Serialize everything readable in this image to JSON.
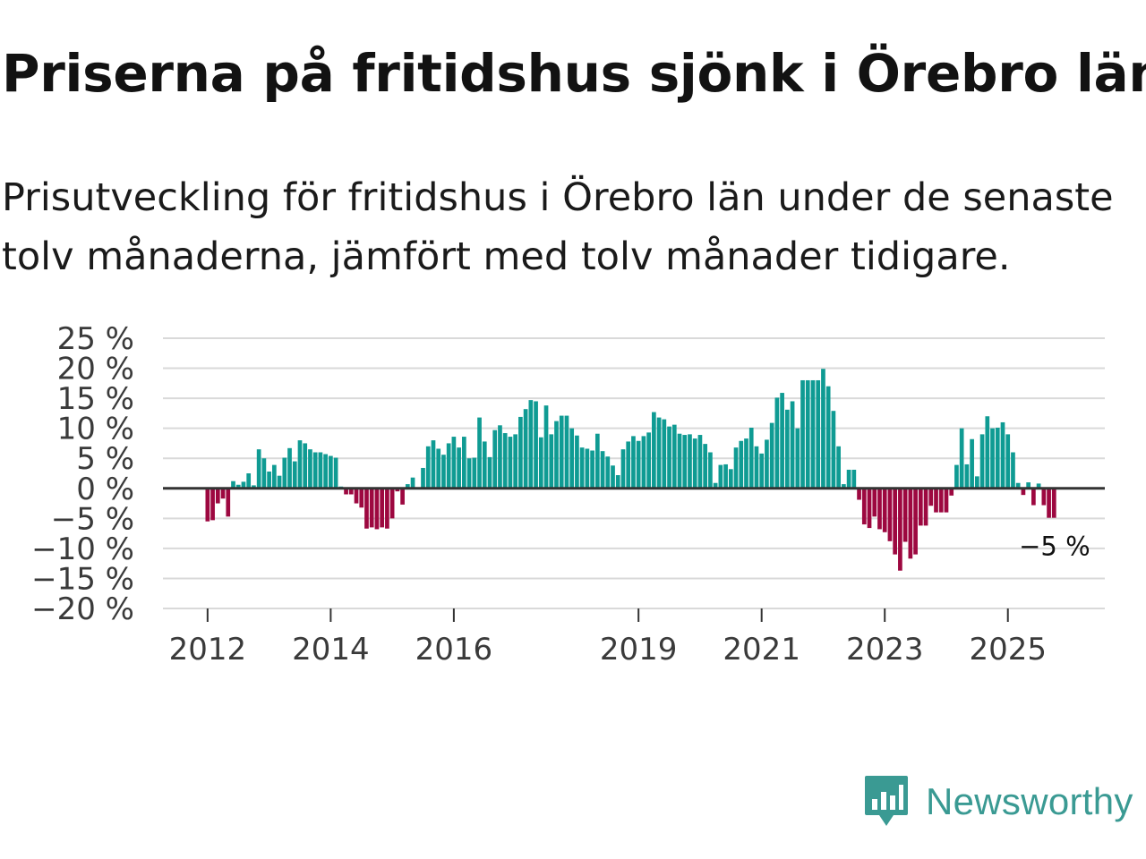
{
  "title": "Priserna på fritidshus sjönk i Örebro län",
  "subtitle": "Prisutveckling för fritidshus i Örebro län under de senaste tolv månaderna, jämfört med tolv månader tidigare.",
  "logo": {
    "text": "Newsworthy",
    "color": "#3a9a93"
  },
  "colors": {
    "positive": "#0f9b93",
    "negative": "#9d0840",
    "zero_line": "#333333",
    "grid": "#d9d9d9"
  },
  "chart_data": {
    "type": "bar",
    "title": "Prisutveckling för fritidshus i Örebro län",
    "xlabel": "",
    "ylabel": "",
    "ylim": [
      -20,
      25
    ],
    "yticks": [
      25,
      20,
      15,
      10,
      5,
      0,
      -5,
      -10,
      -15,
      -20
    ],
    "ytick_labels": [
      "25 %",
      "20 %",
      "15 %",
      "10 %",
      "5 %",
      "0 %",
      "−5 %",
      "−10 %",
      "−15 %",
      "−20 %"
    ],
    "xticks": [
      "2012",
      "2014",
      "2016",
      "2019",
      "2021",
      "2023",
      "2025"
    ],
    "start": "2012-01",
    "end_label": "−5 %",
    "values": [
      -5.5,
      -5.3,
      -2.5,
      -1.7,
      -4.7,
      1.2,
      0.6,
      1.1,
      2.5,
      0.5,
      6.5,
      5.0,
      2.8,
      3.9,
      2.1,
      5.1,
      6.7,
      4.5,
      8.0,
      7.5,
      6.5,
      6.0,
      6.0,
      5.7,
      5.4,
      5.1,
      0.3,
      -1.0,
      -1.0,
      -2.5,
      -3.2,
      -6.7,
      -6.5,
      -6.8,
      -6.5,
      -6.7,
      -5.0,
      -0.5,
      -2.7,
      0.7,
      1.8,
      0.1,
      3.4,
      7.0,
      8.0,
      6.6,
      5.6,
      7.5,
      8.6,
      6.8,
      8.6,
      5.0,
      5.1,
      11.8,
      7.8,
      5.2,
      9.7,
      10.5,
      9.2,
      8.6,
      9.0,
      11.9,
      13.2,
      14.7,
      14.5,
      8.5,
      13.8,
      9.0,
      11.2,
      12.1,
      12.1,
      10.0,
      8.8,
      6.8,
      6.6,
      6.3,
      9.1,
      6.2,
      5.3,
      3.8,
      2.2,
      6.5,
      7.8,
      8.7,
      7.9,
      8.7,
      9.3,
      12.7,
      11.8,
      11.5,
      10.3,
      10.6,
      9.1,
      8.9,
      9.0,
      8.3,
      8.9,
      7.4,
      6.0,
      0.9,
      3.9,
      4.0,
      3.2,
      6.8,
      7.9,
      8.3,
      10.1,
      7.0,
      5.8,
      8.1,
      10.9,
      15.1,
      15.9,
      13.1,
      14.5,
      10.0,
      18.0,
      18.0,
      18.0,
      18.0,
      19.9,
      17.0,
      12.9,
      7.0,
      0.7,
      3.1,
      3.1,
      -1.9,
      -6.0,
      -6.6,
      -4.7,
      -6.8,
      -7.3,
      -8.8,
      -11.0,
      -13.7,
      -8.9,
      -11.7,
      -11.0,
      -6.2,
      -6.2,
      -2.9,
      -4.0,
      -4.0,
      -4.0,
      -1.2,
      3.9,
      10.0,
      4.0,
      8.2,
      2.0,
      9.0,
      12.0,
      10.0,
      10.1,
      11.0,
      9.0,
      6.0,
      0.9,
      -1.1,
      1.0,
      -2.8,
      0.8,
      -2.8,
      -4.9,
      -4.9
    ]
  }
}
